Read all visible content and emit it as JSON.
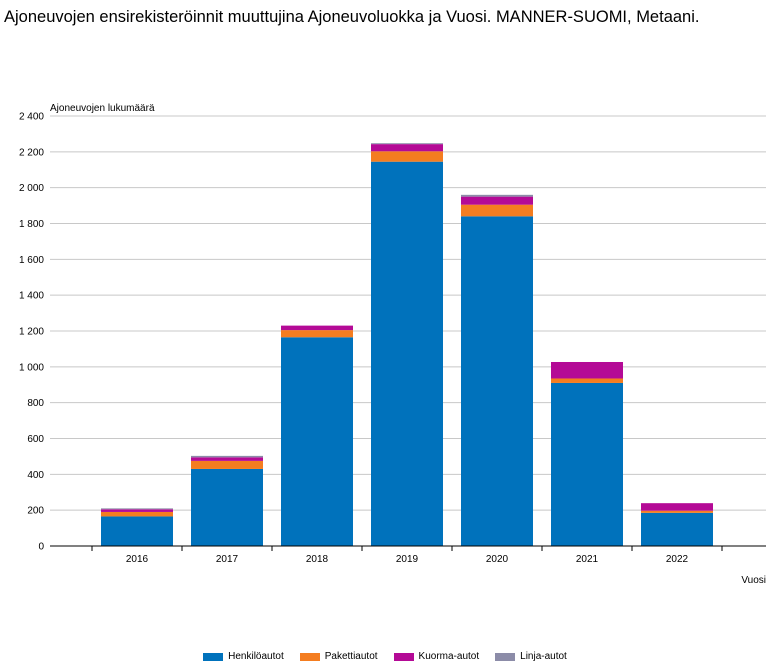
{
  "title": "Ajoneuvojen ensirekisteröinnit muuttujina Ajoneuvoluokka ja Vuosi. MANNER-SUOMI, Metaani.",
  "chart_data": {
    "type": "bar",
    "stacked": true,
    "categories": [
      "2016",
      "2017",
      "2018",
      "2019",
      "2020",
      "2021",
      "2022"
    ],
    "series": [
      {
        "name": "Henkilöautot",
        "color": "#0072bc",
        "values": [
          165,
          430,
          1165,
          2145,
          1840,
          910,
          185
        ]
      },
      {
        "name": "Pakettiautot",
        "color": "#f47d20",
        "values": [
          25,
          45,
          40,
          58,
          65,
          25,
          12
        ]
      },
      {
        "name": "Kuorma-autot",
        "color": "#b40a96",
        "values": [
          15,
          20,
          25,
          40,
          45,
          92,
          42
        ]
      },
      {
        "name": "Linja-autot",
        "color": "#8c8ca8",
        "values": [
          5,
          8,
          0,
          5,
          10,
          0,
          0
        ]
      }
    ],
    "ylabel": "Ajoneuvojen lukumäärä",
    "xlabel": "Vuosi",
    "ylim": [
      0,
      2400
    ],
    "yticks": [
      "0",
      "200",
      "400",
      "600",
      "800",
      "1 000",
      "1 200",
      "1 400",
      "1 600",
      "1 800",
      "2 000",
      "2 200",
      "2 400"
    ],
    "grid": true,
    "legend_position": "bottom"
  }
}
